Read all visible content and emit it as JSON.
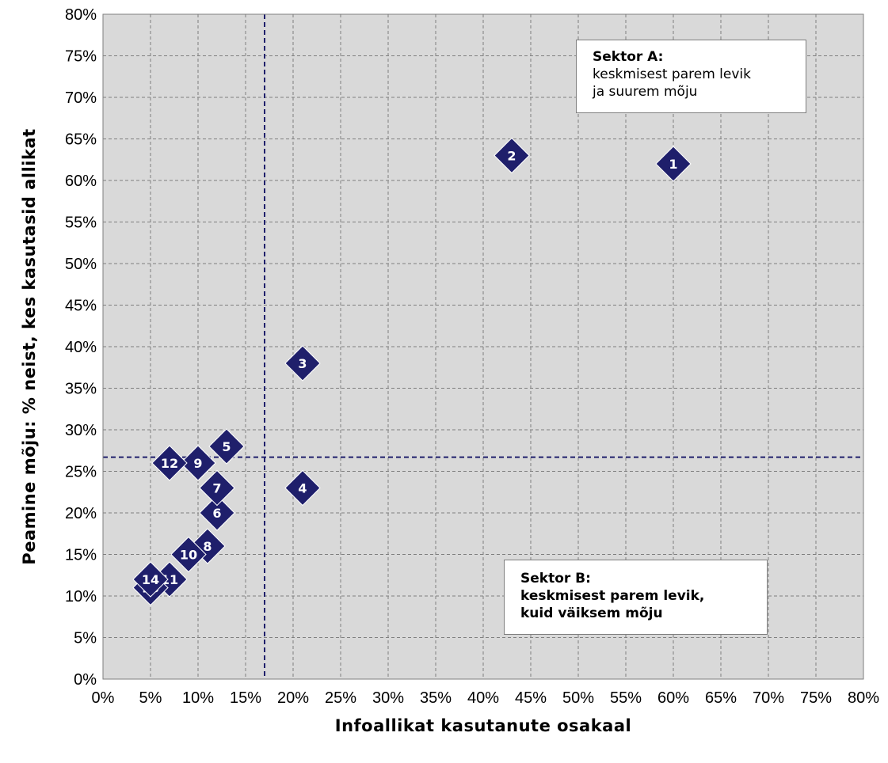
{
  "chart_data": {
    "type": "scatter",
    "title": "",
    "xlabel": "Infoallikat kasutanute osakaal",
    "ylabel": "Peamine mõju: % neist, kes kasutasid allikat",
    "xlim": [
      0,
      80
    ],
    "ylim": [
      0,
      80
    ],
    "x_ticks": [
      "0%",
      "5%",
      "10%",
      "15%",
      "20%",
      "25%",
      "30%",
      "35%",
      "40%",
      "45%",
      "50%",
      "55%",
      "60%",
      "65%",
      "70%",
      "75%",
      "80%"
    ],
    "y_ticks": [
      "0%",
      "5%",
      "10%",
      "15%",
      "20%",
      "25%",
      "30%",
      "35%",
      "40%",
      "45%",
      "50%",
      "55%",
      "60%",
      "65%",
      "70%",
      "75%",
      "80%"
    ],
    "grid": true,
    "marker": "diamond",
    "marker_color": "#1f1f6b",
    "points": [
      {
        "label": "1",
        "x": 60,
        "y": 62
      },
      {
        "label": "2",
        "x": 43,
        "y": 63
      },
      {
        "label": "3",
        "x": 21,
        "y": 38
      },
      {
        "label": "4",
        "x": 21,
        "y": 23
      },
      {
        "label": "5",
        "x": 13,
        "y": 28
      },
      {
        "label": "6",
        "x": 12,
        "y": 20
      },
      {
        "label": "7",
        "x": 12,
        "y": 23
      },
      {
        "label": "8",
        "x": 11,
        "y": 16
      },
      {
        "label": "9",
        "x": 10,
        "y": 26
      },
      {
        "label": "10",
        "x": 9,
        "y": 15
      },
      {
        "label": "11",
        "x": 7,
        "y": 12
      },
      {
        "label": "12",
        "x": 7,
        "y": 26
      },
      {
        "label": "13",
        "x": 5,
        "y": 11
      },
      {
        "label": "14",
        "x": 5,
        "y": 12
      }
    ],
    "reference_lines": {
      "vertical_x": 17,
      "horizontal_y": 26.7,
      "color": "#1f1f6b",
      "style": "dashed"
    },
    "annotations": [
      {
        "title": "Sektor A:",
        "lines": [
          "keskmisest parem levik",
          "ja suurem mõju"
        ]
      },
      {
        "title": "Sektor B:",
        "lines": [
          "keskmisest parem levik,",
          "kuid väiksem mõju"
        ]
      }
    ]
  }
}
